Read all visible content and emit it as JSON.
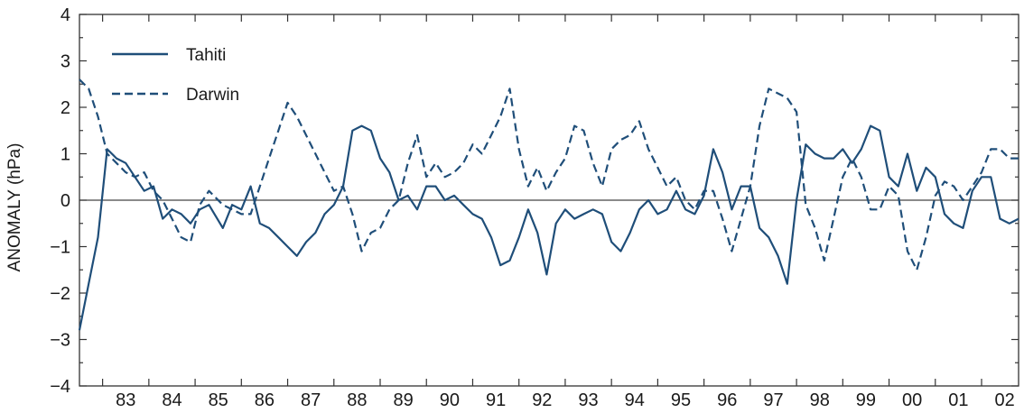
{
  "chart_data": {
    "type": "line",
    "title": "",
    "xlabel": "",
    "ylabel": "ANOMALY (hPa)",
    "ylim": [
      -4,
      4
    ],
    "yticks": [
      "4",
      "3",
      "2",
      "1",
      "0",
      "−1",
      "−2",
      "−3",
      "−4"
    ],
    "xlim": [
      1982.5,
      2002.8
    ],
    "xtick_labels": [
      "83",
      "84",
      "85",
      "86",
      "87",
      "88",
      "89",
      "90",
      "91",
      "92",
      "93",
      "94",
      "95",
      "96",
      "97",
      "98",
      "99",
      "00",
      "01",
      "02"
    ],
    "legend_position": "top-left",
    "zero_line": true,
    "colors": {
      "line": "#1f4e79",
      "axis": "#333333",
      "zero": "#444444"
    },
    "series": [
      {
        "name": "Tahiti",
        "style": "solid",
        "x": [
          1982.5,
          1982.7,
          1982.9,
          1983.1,
          1983.3,
          1983.5,
          1983.7,
          1983.9,
          1984.1,
          1984.3,
          1984.5,
          1984.7,
          1984.9,
          1985.1,
          1985.3,
          1985.6,
          1985.8,
          1986.0,
          1986.2,
          1986.4,
          1986.6,
          1986.8,
          1987.0,
          1987.2,
          1987.4,
          1987.6,
          1987.8,
          1988.0,
          1988.2,
          1988.4,
          1988.6,
          1988.8,
          1989.0,
          1989.2,
          1989.4,
          1989.6,
          1989.8,
          1990.0,
          1990.2,
          1990.4,
          1990.6,
          1990.8,
          1991.0,
          1991.2,
          1991.4,
          1991.6,
          1991.8,
          1992.0,
          1992.2,
          1992.4,
          1992.6,
          1992.8,
          1993.0,
          1993.2,
          1993.4,
          1993.6,
          1993.8,
          1994.0,
          1994.2,
          1994.4,
          1994.6,
          1994.8,
          1995.0,
          1995.2,
          1995.4,
          1995.6,
          1995.8,
          1996.0,
          1996.2,
          1996.4,
          1996.6,
          1996.8,
          1997.0,
          1997.2,
          1997.4,
          1997.6,
          1997.8,
          1998.0,
          1998.2,
          1998.4,
          1998.6,
          1998.8,
          1999.0,
          1999.2,
          1999.4,
          1999.6,
          1999.8,
          2000.0,
          2000.2,
          2000.4,
          2000.6,
          2000.8,
          2001.0,
          2001.2,
          2001.4,
          2001.6,
          2001.8,
          2002.0,
          2002.2,
          2002.4,
          2002.6,
          2002.8
        ],
        "y": [
          -2.8,
          -1.8,
          -0.8,
          1.1,
          0.9,
          0.8,
          0.5,
          0.2,
          0.3,
          -0.4,
          -0.2,
          -0.3,
          -0.5,
          -0.2,
          -0.1,
          -0.6,
          -0.1,
          -0.2,
          0.3,
          -0.5,
          -0.6,
          -0.8,
          -1.0,
          -1.2,
          -0.9,
          -0.7,
          -0.3,
          -0.1,
          0.3,
          1.5,
          1.6,
          1.5,
          0.9,
          0.6,
          0.0,
          0.1,
          -0.2,
          0.3,
          0.3,
          0.0,
          0.1,
          -0.1,
          -0.3,
          -0.4,
          -0.8,
          -1.4,
          -1.3,
          -0.8,
          -0.2,
          -0.7,
          -1.6,
          -0.5,
          -0.2,
          -0.4,
          -0.3,
          -0.2,
          -0.3,
          -0.9,
          -1.1,
          -0.7,
          -0.2,
          0.0,
          -0.3,
          -0.2,
          0.2,
          -0.2,
          -0.3,
          0.1,
          1.1,
          0.6,
          -0.2,
          0.3,
          0.3,
          -0.6,
          -0.8,
          -1.2,
          -1.8,
          0.0,
          1.2,
          1.0,
          0.9,
          0.9,
          1.1,
          0.8,
          1.1,
          1.6,
          1.5,
          0.5,
          0.3,
          1.0,
          0.2,
          0.7,
          0.5,
          -0.3,
          -0.5,
          -0.6,
          0.2,
          0.5,
          0.5,
          -0.4,
          -0.5,
          -0.4
        ]
      },
      {
        "name": "Darwin",
        "style": "dashed",
        "x": [
          1982.5,
          1982.7,
          1982.9,
          1983.1,
          1983.3,
          1983.5,
          1983.7,
          1983.9,
          1984.1,
          1984.3,
          1984.5,
          1984.7,
          1984.9,
          1985.1,
          1985.3,
          1985.6,
          1985.8,
          1986.0,
          1986.2,
          1986.4,
          1986.6,
          1986.8,
          1987.0,
          1987.2,
          1987.4,
          1987.6,
          1987.8,
          1988.0,
          1988.2,
          1988.4,
          1988.6,
          1988.8,
          1989.0,
          1989.2,
          1989.4,
          1989.6,
          1989.8,
          1990.0,
          1990.2,
          1990.4,
          1990.6,
          1990.8,
          1991.0,
          1991.2,
          1991.4,
          1991.6,
          1991.8,
          1992.0,
          1992.2,
          1992.4,
          1992.6,
          1992.8,
          1993.0,
          1993.2,
          1993.4,
          1993.6,
          1993.8,
          1994.0,
          1994.2,
          1994.4,
          1994.6,
          1994.8,
          1995.0,
          1995.2,
          1995.4,
          1995.6,
          1995.8,
          1996.0,
          1996.2,
          1996.4,
          1996.6,
          1996.8,
          1997.0,
          1997.2,
          1997.4,
          1997.6,
          1997.8,
          1998.0,
          1998.2,
          1998.4,
          1998.6,
          1998.8,
          1999.0,
          1999.2,
          1999.4,
          1999.6,
          1999.8,
          2000.0,
          2000.2,
          2000.4,
          2000.6,
          2000.8,
          2001.0,
          2001.2,
          2001.4,
          2001.6,
          2001.8,
          2002.0,
          2002.2,
          2002.4,
          2002.6,
          2002.8
        ],
        "y": [
          2.6,
          2.4,
          1.8,
          1.0,
          0.8,
          0.6,
          0.5,
          0.6,
          0.2,
          0.0,
          -0.4,
          -0.8,
          -0.9,
          -0.1,
          0.2,
          -0.1,
          -0.2,
          -0.3,
          -0.3,
          0.3,
          0.9,
          1.5,
          2.1,
          1.8,
          1.4,
          1.0,
          0.6,
          0.2,
          0.3,
          -0.3,
          -1.1,
          -0.7,
          -0.6,
          -0.2,
          0.0,
          0.8,
          1.4,
          0.5,
          0.8,
          0.5,
          0.6,
          0.8,
          1.2,
          1.0,
          1.4,
          1.8,
          2.4,
          1.1,
          0.3,
          0.7,
          0.2,
          0.6,
          0.9,
          1.6,
          1.5,
          0.8,
          0.3,
          1.1,
          1.3,
          1.4,
          1.7,
          1.1,
          0.7,
          0.3,
          0.5,
          0.0,
          -0.2,
          0.2,
          0.2,
          -0.4,
          -1.1,
          -0.4,
          0.3,
          1.6,
          2.4,
          2.3,
          2.2,
          1.9,
          -0.1,
          -0.6,
          -1.3,
          -0.4,
          0.5,
          0.9,
          0.5,
          -0.2,
          -0.2,
          0.3,
          0.1,
          -1.1,
          -1.5,
          -0.8,
          0.1,
          0.4,
          0.3,
          0.0,
          0.3,
          0.6,
          1.1,
          1.1,
          0.9,
          0.9
        ]
      }
    ]
  }
}
